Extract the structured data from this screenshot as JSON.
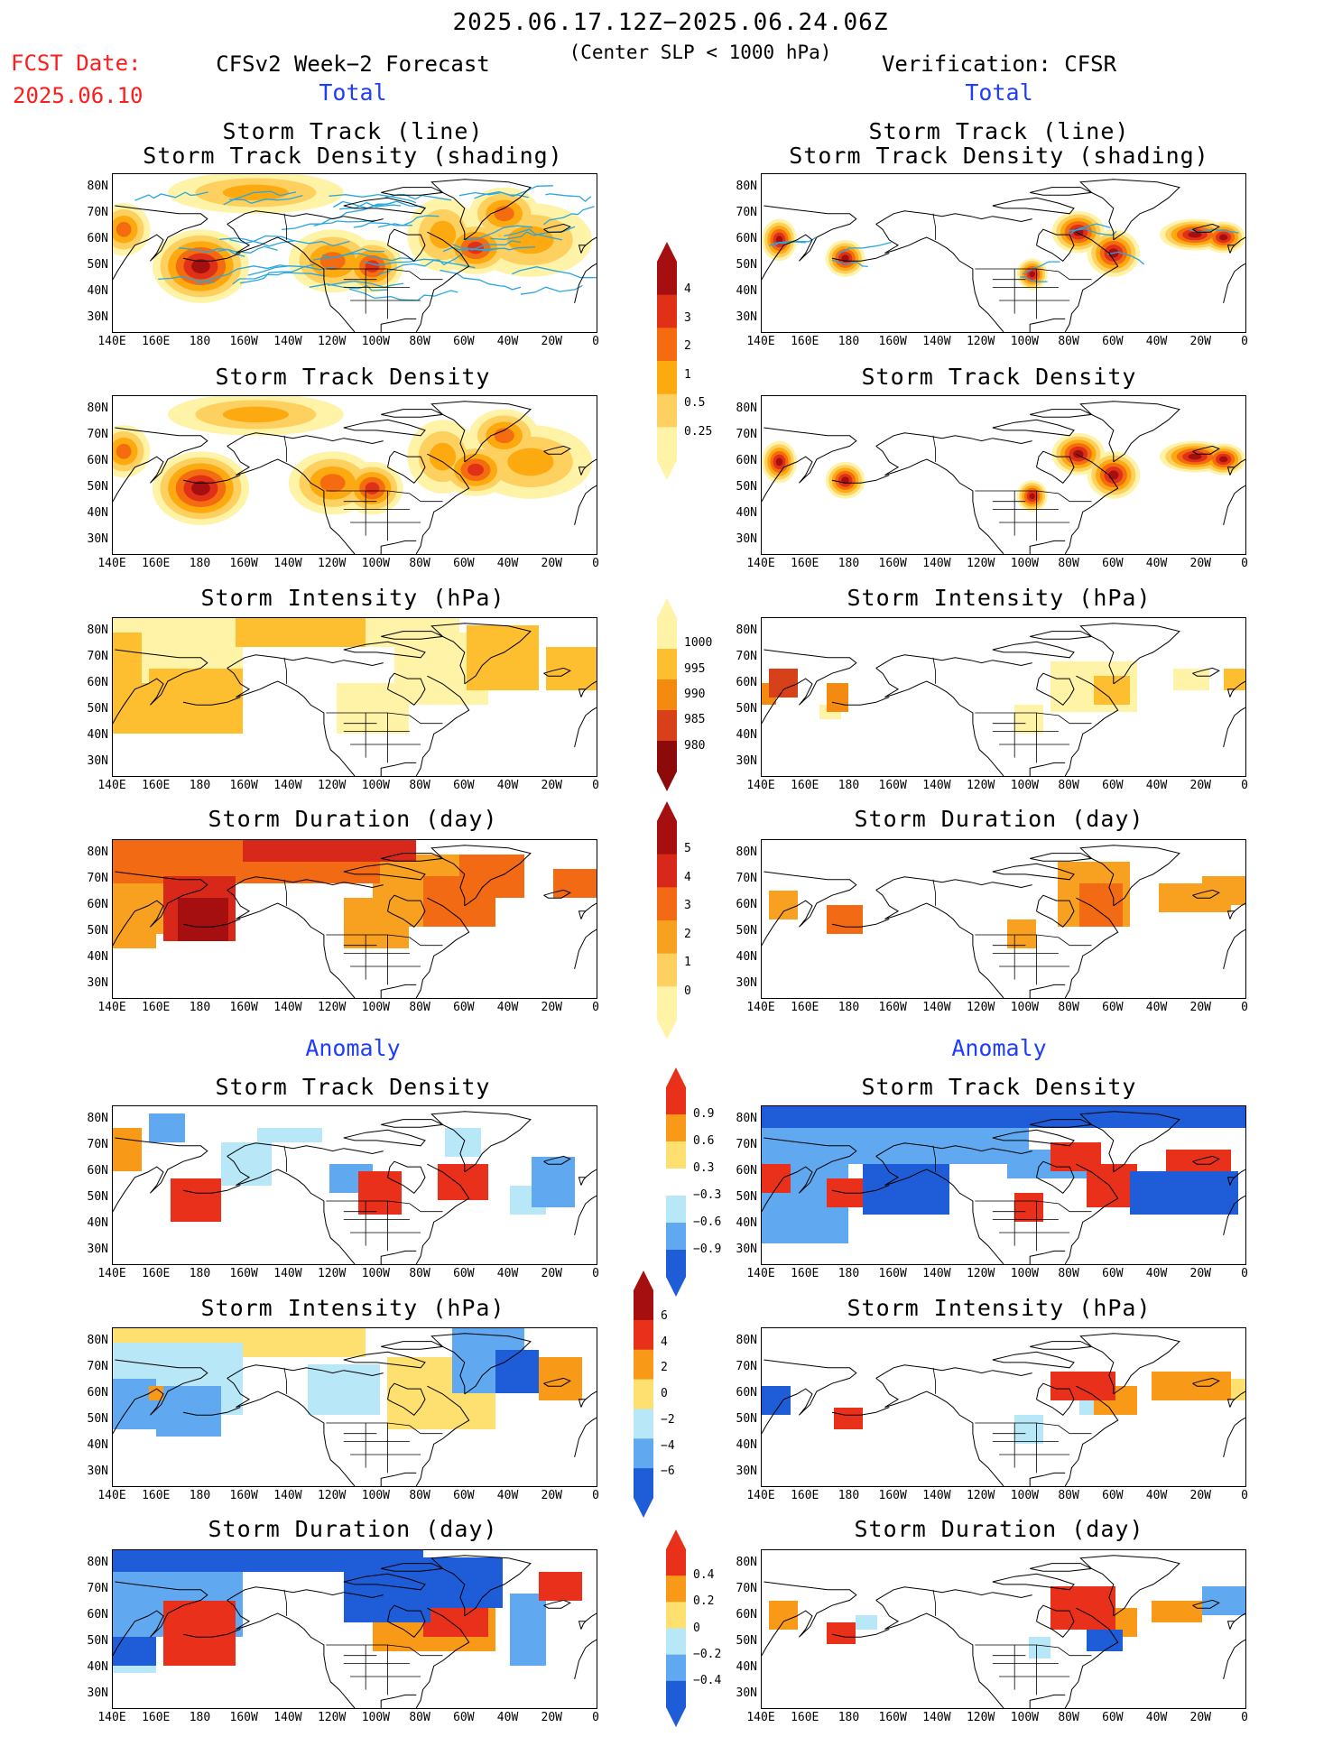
{
  "header": {
    "title_date_range": "2025.06.17.12Z−2025.06.24.06Z",
    "subtitle": "(Center SLP < 1000 hPa)",
    "fcst_label": "FCST Date:",
    "fcst_date": "2025.06.10",
    "left_model": "CFSv2 Week−2 Forecast",
    "right_model": "Verification: CFSR"
  },
  "sections": {
    "total": "Total",
    "anomaly": "Anomaly"
  },
  "panel_titles": {
    "track_line": "Storm Track (line)",
    "track_shading": "Storm Track Density (shading)",
    "density": "Storm Track Density",
    "intensity": "Storm Intensity (hPa)",
    "duration": "Storm Duration (day)"
  },
  "axes": {
    "lat_labels": [
      "80N",
      "70N",
      "60N",
      "50N",
      "40N",
      "30N"
    ],
    "lon_labels": [
      "140E",
      "160E",
      "180",
      "160W",
      "140W",
      "120W",
      "100W",
      "80W",
      "60W",
      "40W",
      "20W",
      "0"
    ]
  },
  "colorbars": {
    "density_total": {
      "labels": [
        "4",
        "3",
        "2",
        "1",
        "0.5",
        "0.25"
      ],
      "colors": [
        "#a50f0f",
        "#e03018",
        "#f46b10",
        "#fdaa10",
        "#fdd060",
        "#fff3a8"
      ]
    },
    "intensity_total": {
      "labels": [
        "1000",
        "995",
        "990",
        "985",
        "980"
      ],
      "colors": [
        "#fff3a8",
        "#fdbf30",
        "#f58a10",
        "#d8401a",
        "#8c0a0a"
      ]
    },
    "duration_total": {
      "labels": [
        "5",
        "4",
        "3",
        "2",
        "1",
        "0"
      ],
      "colors": [
        "#a50f0f",
        "#d8281a",
        "#f26a14",
        "#f8a020",
        "#fdd060",
        "#fff3a8"
      ]
    },
    "density_anom": {
      "labels": [
        "0.9",
        "0.6",
        "0.3",
        "−0.3",
        "−0.6",
        "−0.9"
      ],
      "colors": [
        "#e8301a",
        "#f89a18",
        "#fde070",
        "#ffffff",
        "#b8e8f8",
        "#60a8f0",
        "#1e5cd8"
      ]
    },
    "intensity_anom": {
      "labels": [
        "6",
        "4",
        "2",
        "0",
        "−2",
        "−4",
        "−6"
      ],
      "colors": [
        "#a50f0f",
        "#e8301a",
        "#f89a18",
        "#fde070",
        "#b8e8f8",
        "#60a8f0",
        "#1e5cd8"
      ]
    },
    "duration_anom": {
      "labels": [
        "0.4",
        "0.2",
        "0",
        "−0.2",
        "−0.4"
      ],
      "colors": [
        "#e8301a",
        "#f89a18",
        "#fde070",
        "#b8e8f8",
        "#60a8f0",
        "#1e5cd8"
      ]
    }
  }
}
